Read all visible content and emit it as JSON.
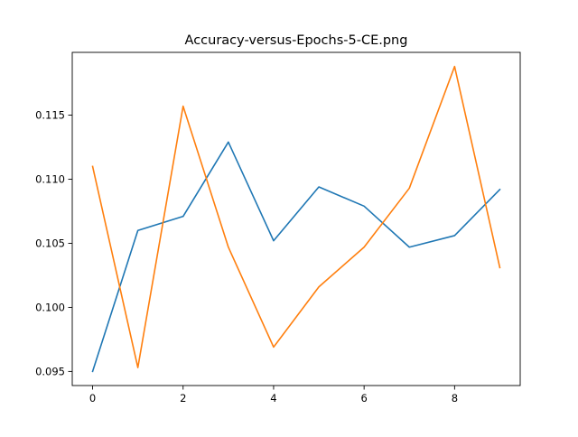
{
  "chart_data": {
    "type": "line",
    "title": "Accuracy-versus-Epochs-5-CE.png",
    "xlabel": "",
    "ylabel": "",
    "x": [
      0,
      1,
      2,
      3,
      4,
      5,
      6,
      7,
      8,
      9
    ],
    "xlim": [
      -0.45,
      9.45
    ],
    "ylim": [
      0.0939,
      0.1199
    ],
    "x_ticks": [
      0,
      2,
      4,
      6,
      8
    ],
    "y_ticks": [
      0.095,
      0.1,
      0.105,
      0.11,
      0.115
    ],
    "x_tick_labels": [
      "0",
      "2",
      "4",
      "6",
      "8"
    ],
    "y_tick_labels": [
      "0.095",
      "0.100",
      "0.105",
      "0.110",
      "0.115"
    ],
    "grid": false,
    "legend": "none",
    "series": [
      {
        "color": "#1f77b4",
        "values": [
          0.095,
          0.106,
          0.1071,
          0.1129,
          0.1052,
          0.1094,
          0.1079,
          0.1047,
          0.1056,
          0.1092
        ]
      },
      {
        "color": "#ff7f0e",
        "values": [
          0.111,
          0.0953,
          0.1157,
          0.1047,
          0.0969,
          0.1016,
          0.1047,
          0.1093,
          0.1188,
          0.1031
        ]
      }
    ]
  }
}
